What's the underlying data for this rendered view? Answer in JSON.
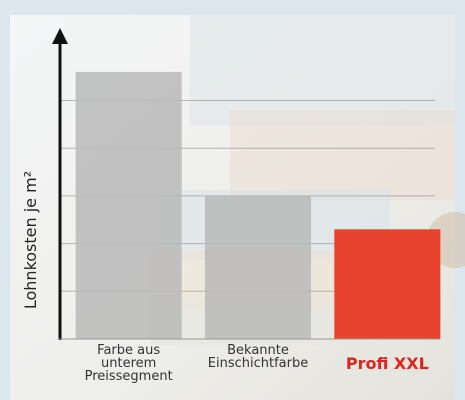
{
  "chart_data": {
    "type": "bar",
    "y_label": "Lohnkosten je m²",
    "categories": [
      "Farbe aus\nunterem\nPreissegment",
      "Bekannte\nEinschichtfarbe",
      "Profi XXL"
    ],
    "values": [
      5.6,
      3.0,
      2.3
    ],
    "colors": [
      "#b8b8b8",
      "#b8b8b8",
      "#e8432e"
    ],
    "highlight_index": 2,
    "highlight_color": "#e0241b",
    "ylim": [
      0,
      6.5
    ],
    "yticks": [
      1,
      2,
      3,
      4,
      5
    ],
    "grid": true
  }
}
